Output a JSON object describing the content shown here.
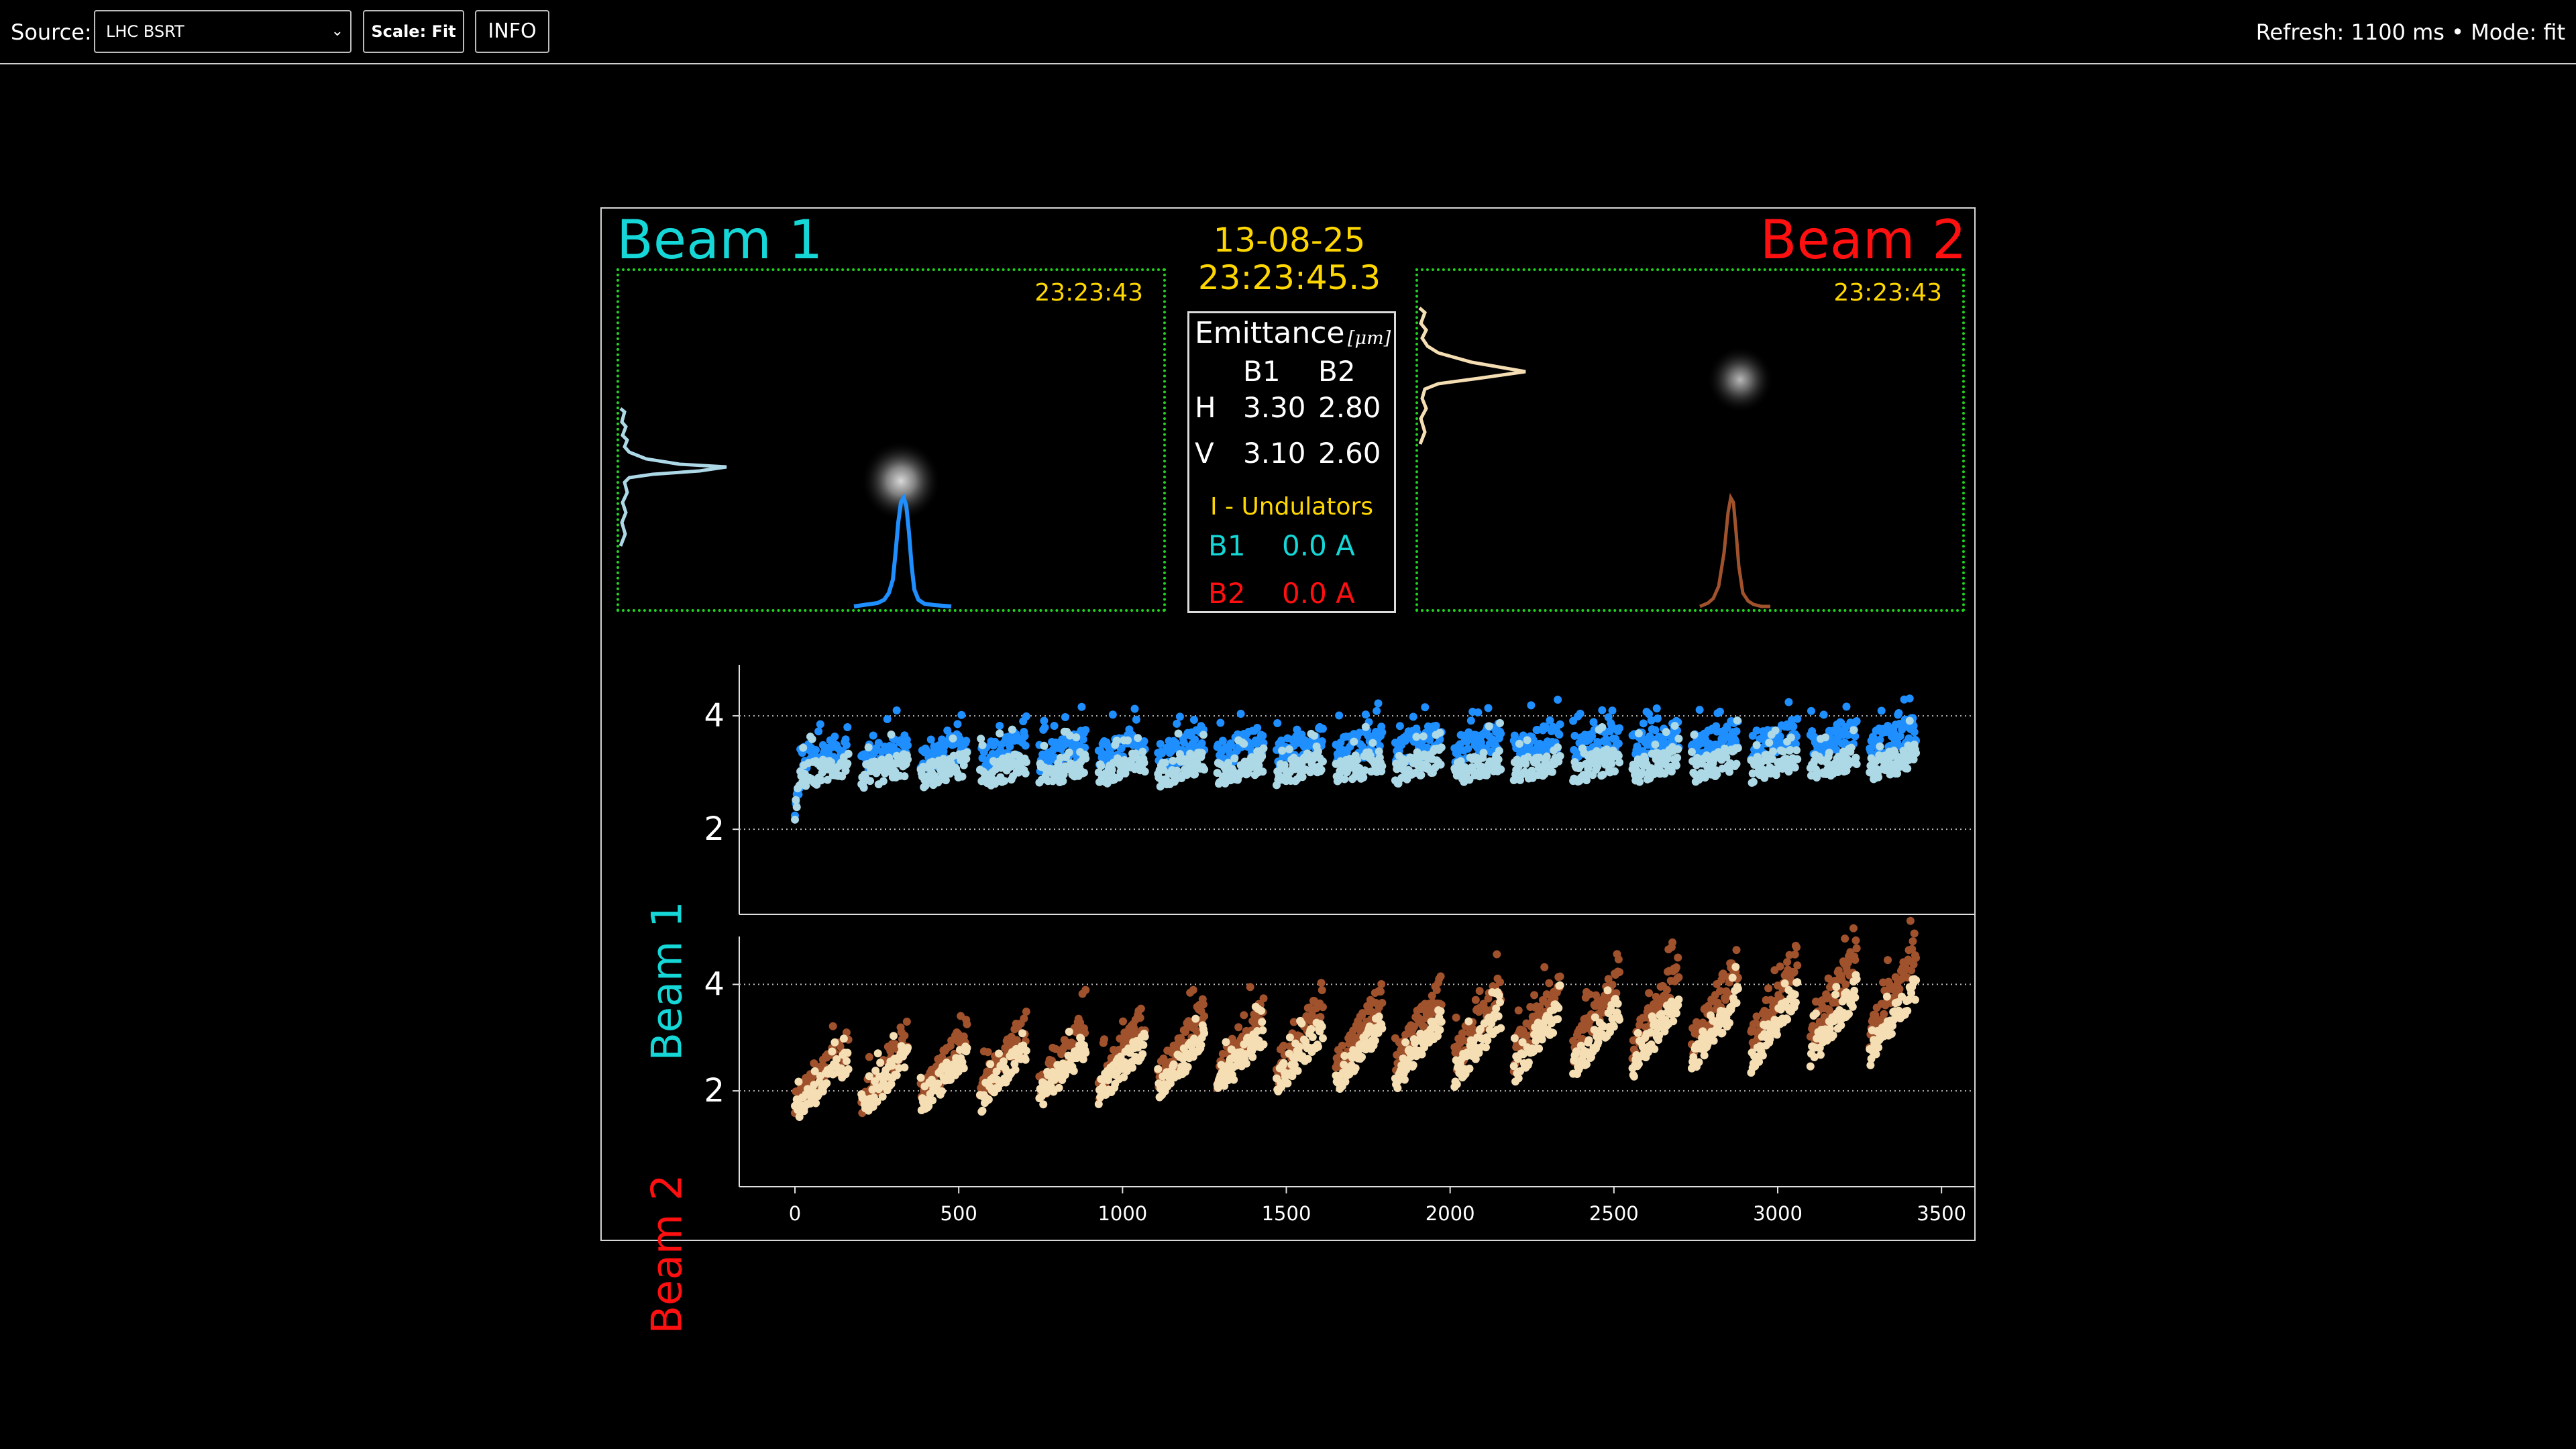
{
  "toolbar": {
    "source_label": "Source:",
    "source_value": "LHC BSRT",
    "scale_button": "Scale: Fit",
    "info_button": "INFO",
    "status": "Refresh: 1100 ms • Mode: fit"
  },
  "header": {
    "beam1_title": "Beam 1",
    "beam2_title": "Beam 2",
    "date": "13-08-25",
    "time": "23:23:45.3"
  },
  "cameras": {
    "beam1_timestamp": "23:23:43",
    "beam2_timestamp": "23:23:43"
  },
  "emittance": {
    "title": "Emittance",
    "unit": "[μm]",
    "col_b1": "B1",
    "col_b2": "B2",
    "row_h_label": "H",
    "row_h_b1": "3.30",
    "row_h_b2": "2.80",
    "row_v_label": "V",
    "row_v_b1": "3.10",
    "row_v_b2": "2.60",
    "undulators_title": "I - Undulators",
    "und_b1_label": "B1",
    "und_b1_value": "0.0 A",
    "und_b2_label": "B2",
    "und_b2_value": "0.0 A"
  },
  "colors": {
    "beam1": "#16d7d7",
    "beam2": "#ff1010",
    "yellow": "#ffd700",
    "b1_h": "#1f8fff",
    "b1_v": "#add8e6",
    "b2_h": "#a0522d",
    "b2_v": "#f5deb3"
  },
  "chart_data": [
    {
      "type": "scatter",
      "ylabel": "Beam 1",
      "x_range": [
        -170,
        3600
      ],
      "ylim": [
        0.5,
        4.9
      ],
      "y_ticks": [
        2,
        4
      ],
      "x_ticks": [],
      "grid": "horizontal dotted",
      "fills": 19,
      "x_first": 0,
      "x_last": 3440,
      "series": [
        {
          "color": "#1f8fff",
          "ramp_start": 3.3,
          "ramp_end": 3.6,
          "jitter": 0.25
        },
        {
          "color": "#add8e6",
          "ramp_start": 3.0,
          "ramp_end": 3.15,
          "jitter": 0.22
        }
      ]
    },
    {
      "type": "scatter",
      "ylabel": "Beam 2",
      "x_range": [
        -170,
        3600
      ],
      "ylim": [
        0.2,
        4.9
      ],
      "y_ticks": [
        2,
        4
      ],
      "x_ticks": [
        0,
        500,
        1000,
        1500,
        2000,
        2500,
        3000,
        3500
      ],
      "grid": "horizontal dotted",
      "fills": 19,
      "x_first": 0,
      "x_last": 3440,
      "series": [
        {
          "color": "#a0522d",
          "ramp_start": 2.1,
          "ramp_end": 3.4,
          "jitter": 0.3
        },
        {
          "color": "#f5deb3",
          "ramp_start": 2.0,
          "ramp_end": 3.0,
          "jitter": 0.25
        }
      ]
    }
  ]
}
